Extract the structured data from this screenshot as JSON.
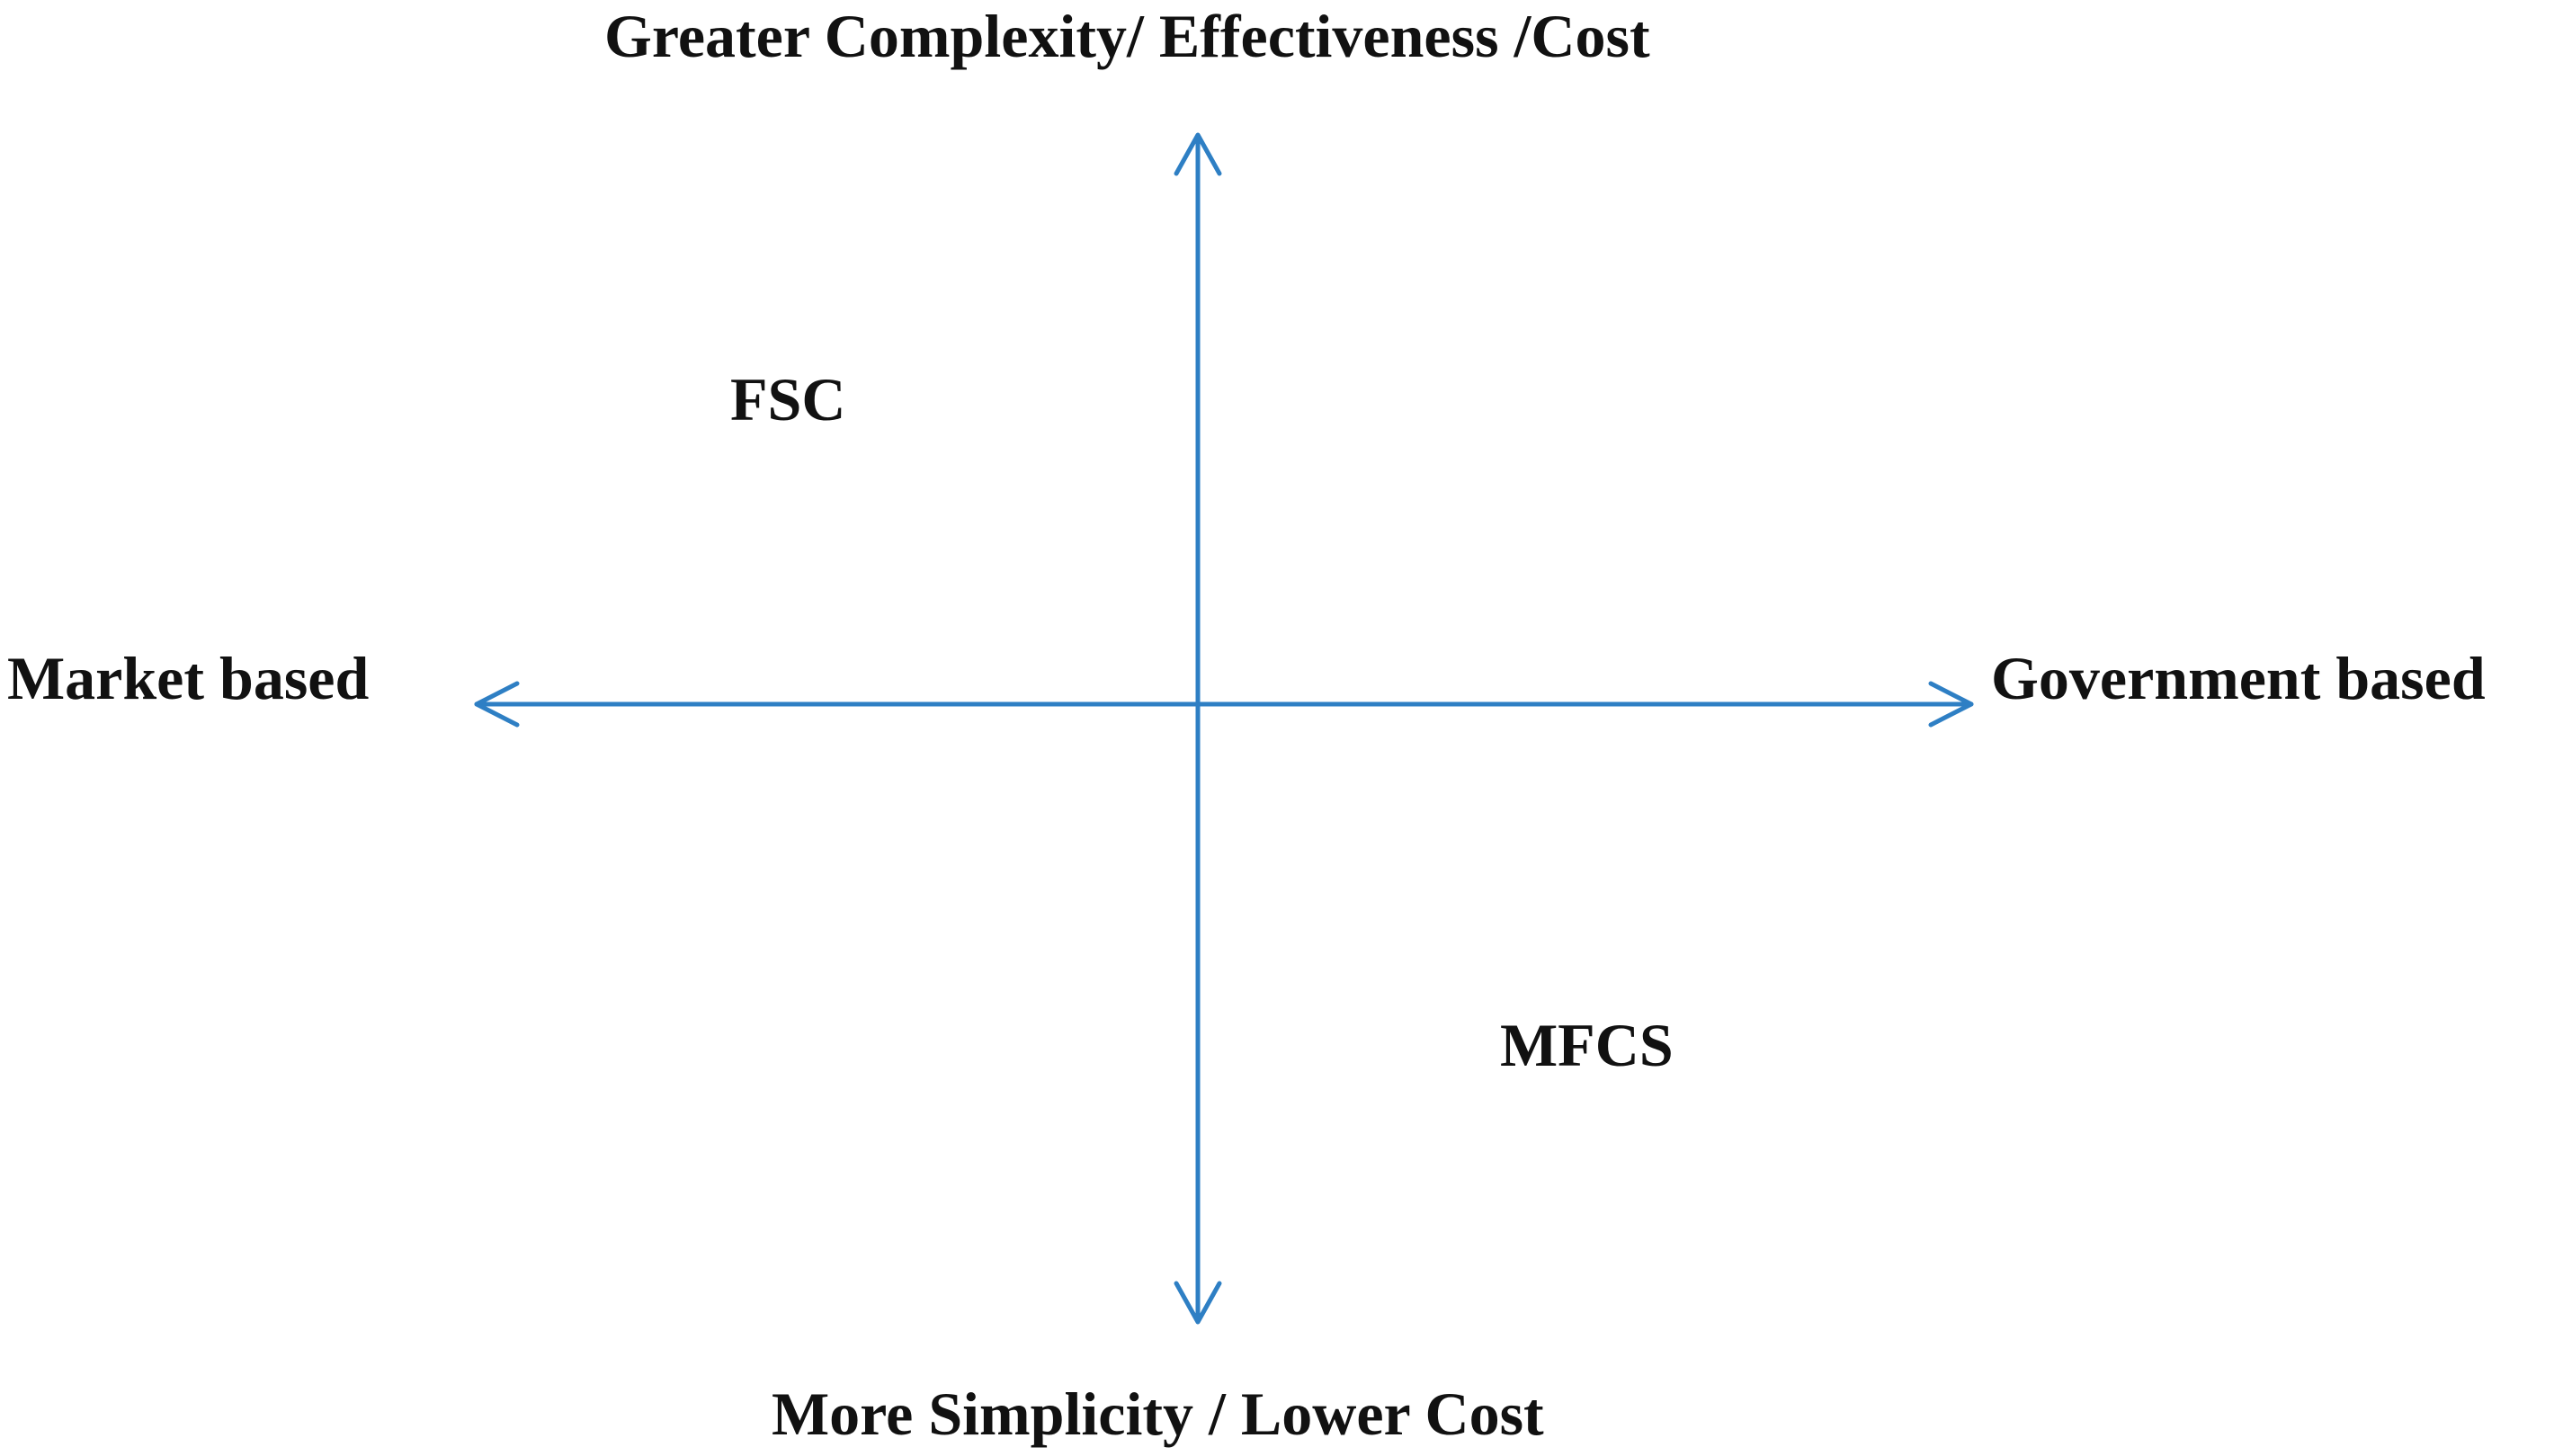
{
  "labels": {
    "top": "Greater Complexity/ Effectiveness /Cost",
    "bottom": "More Simplicity / Lower Cost",
    "left": "Market based",
    "right": "Government based"
  },
  "quadrant_items": {
    "fsc": "FSC",
    "mfcs": "MFCS"
  },
  "colors": {
    "axis": "#2e7fc4",
    "text": "#111111"
  }
}
